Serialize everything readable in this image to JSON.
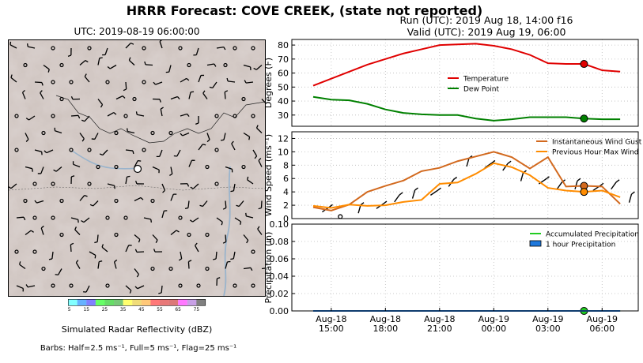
{
  "title": "HRRR Forecast: COVE CREEK, (state not reported)",
  "map": {
    "title": "UTC: 2019-08-19 06:00:00",
    "colorbar": {
      "label": "Simulated Radar Reflectivity (dBZ)",
      "ticks": [
        "5",
        "15",
        "25",
        "35",
        "45",
        "55",
        "65",
        "75"
      ],
      "colors": [
        "#82ffff",
        "#66b2ff",
        "#8080ff",
        "#66ff66",
        "#66dd66",
        "#78c878",
        "#ffff6e",
        "#f0dc78",
        "#ffc878",
        "#ff7878",
        "#e87878",
        "#dc7878",
        "#ff78ff",
        "#c8a0e6",
        "#808080"
      ]
    },
    "barbs_note": "Barbs: Half=2.5 ms⁻¹, Full=5 ms⁻¹, Flag=25 ms⁻¹"
  },
  "run_line": "Run (UTC): 2019 Aug 18, 14:00 f16",
  "valid_line": "Valid (UTC): 2019 Aug 19, 06:00",
  "chart_data": [
    {
      "type": "line",
      "ylabel": "Degrees (F)",
      "ylim": [
        22,
        84
      ],
      "yticks": [
        30,
        40,
        50,
        60,
        70,
        80
      ],
      "grid": true,
      "legend": "center-right",
      "x": [
        "15:00",
        "16:00",
        "17:00",
        "18:00",
        "19:00",
        "20:00",
        "21:00",
        "22:00",
        "23:00",
        "00:00",
        "01:00",
        "02:00",
        "03:00",
        "04:00",
        "05:00",
        "06:00",
        "07:00",
        "08:00"
      ],
      "series": [
        {
          "name": "Temperature",
          "color": "#e00000",
          "values": [
            51,
            56,
            61,
            66,
            70,
            74,
            77,
            80,
            80.5,
            81,
            79.5,
            77,
            73,
            67,
            66.5,
            66.5,
            62,
            61
          ],
          "marker_index": 15
        },
        {
          "name": "Dew Point",
          "color": "#008000",
          "values": [
            43,
            41,
            40.5,
            38,
            34,
            31.5,
            30.5,
            30,
            30,
            27.5,
            26,
            27,
            28.5,
            28.5,
            28.5,
            27.5,
            27,
            27
          ],
          "marker_index": 15
        }
      ]
    },
    {
      "type": "line",
      "ylabel": "Wind Speed (ms⁻¹)",
      "ylim": [
        0,
        13
      ],
      "yticks": [
        0,
        2,
        4,
        6,
        8,
        10,
        12
      ],
      "grid": true,
      "legend": "top-right",
      "x": [
        "15:00",
        "16:00",
        "17:00",
        "18:00",
        "19:00",
        "20:00",
        "21:00",
        "22:00",
        "23:00",
        "00:00",
        "01:00",
        "02:00",
        "03:00",
        "04:00",
        "05:00",
        "06:00",
        "07:00",
        "08:00"
      ],
      "series": [
        {
          "name": "Instantaneous Wind Gust",
          "color": "#d2691e",
          "values": [
            1.7,
            1.2,
            2.1,
            4.0,
            4.9,
            5.7,
            7.1,
            7.6,
            8.6,
            9.3,
            10.0,
            9.2,
            7.5,
            9.2,
            4.8,
            4.9,
            4.8,
            2.2
          ],
          "marker_index": 15
        },
        {
          "name": "Previous Hour Max Wind",
          "color": "#ff8c00",
          "values": [
            1.9,
            1.6,
            2.1,
            1.9,
            2.0,
            2.5,
            2.8,
            5.2,
            5.4,
            6.7,
            8.3,
            7.7,
            6.5,
            4.6,
            4.2,
            4.0,
            4.2,
            3.2
          ],
          "marker_index": 15
        }
      ]
    },
    {
      "type": "bar",
      "ylabel": "Precipitation (in)",
      "ylim": [
        0,
        0.1
      ],
      "yticks": [
        "0.00",
        "0.02",
        "0.04",
        "0.06",
        "0.08",
        "0.10"
      ],
      "grid": true,
      "legend": "top-right",
      "x": [
        "15:00",
        "16:00",
        "17:00",
        "18:00",
        "19:00",
        "20:00",
        "21:00",
        "22:00",
        "23:00",
        "00:00",
        "01:00",
        "02:00",
        "03:00",
        "04:00",
        "05:00",
        "06:00",
        "07:00",
        "08:00"
      ],
      "series": [
        {
          "name": "Accumulated Precipitation",
          "color": "#22cc22",
          "values": [
            0,
            0,
            0,
            0,
            0,
            0,
            0,
            0,
            0,
            0,
            0,
            0,
            0,
            0,
            0,
            0,
            0,
            0
          ],
          "marker_index": 15
        },
        {
          "name": "1 hour Precipitation",
          "color": "#1e78dc",
          "values": [
            0,
            0,
            0,
            0,
            0,
            0,
            0,
            0,
            0,
            0,
            0,
            0,
            0,
            0,
            0,
            0,
            0,
            0
          ]
        }
      ]
    }
  ],
  "x_tick_labels": [
    {
      "top": "Aug-18",
      "bottom": "15:00"
    },
    {
      "top": "Aug-18",
      "bottom": "18:00"
    },
    {
      "top": "Aug-18",
      "bottom": "21:00"
    },
    {
      "top": "Aug-19",
      "bottom": "00:00"
    },
    {
      "top": "Aug-19",
      "bottom": "03:00"
    },
    {
      "top": "Aug-19",
      "bottom": "06:00"
    }
  ]
}
